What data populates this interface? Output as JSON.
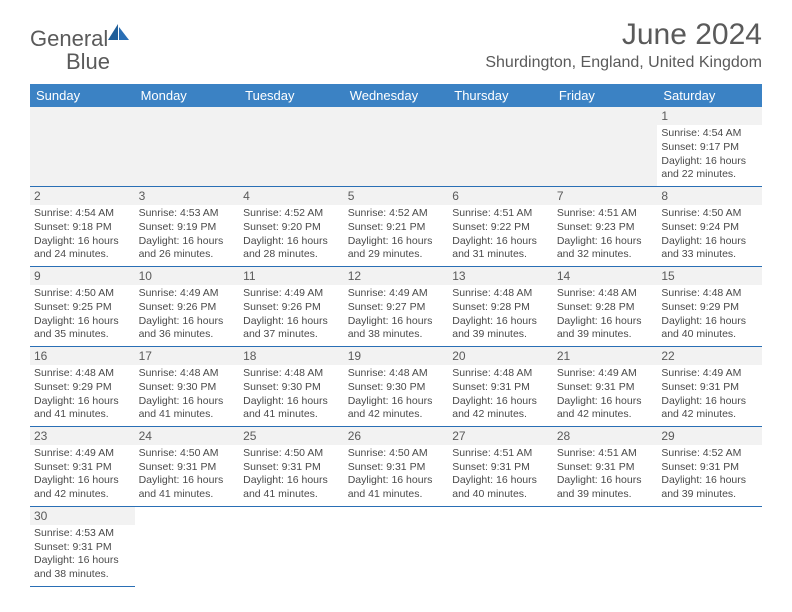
{
  "logo": {
    "text1": "General",
    "text2": "Blue"
  },
  "title": "June 2024",
  "location": "Shurdington, England, United Kingdom",
  "header_bg": "#3b82c4",
  "border_color": "#2a6fb5",
  "dow": [
    "Sunday",
    "Monday",
    "Tuesday",
    "Wednesday",
    "Thursday",
    "Friday",
    "Saturday"
  ],
  "weeks": [
    [
      null,
      null,
      null,
      null,
      null,
      null,
      {
        "n": "1",
        "sr": "4:54 AM",
        "ss": "9:17 PM",
        "dh": "16",
        "dm": "22"
      }
    ],
    [
      {
        "n": "2",
        "sr": "4:54 AM",
        "ss": "9:18 PM",
        "dh": "16",
        "dm": "24"
      },
      {
        "n": "3",
        "sr": "4:53 AM",
        "ss": "9:19 PM",
        "dh": "16",
        "dm": "26"
      },
      {
        "n": "4",
        "sr": "4:52 AM",
        "ss": "9:20 PM",
        "dh": "16",
        "dm": "28"
      },
      {
        "n": "5",
        "sr": "4:52 AM",
        "ss": "9:21 PM",
        "dh": "16",
        "dm": "29"
      },
      {
        "n": "6",
        "sr": "4:51 AM",
        "ss": "9:22 PM",
        "dh": "16",
        "dm": "31"
      },
      {
        "n": "7",
        "sr": "4:51 AM",
        "ss": "9:23 PM",
        "dh": "16",
        "dm": "32"
      },
      {
        "n": "8",
        "sr": "4:50 AM",
        "ss": "9:24 PM",
        "dh": "16",
        "dm": "33"
      }
    ],
    [
      {
        "n": "9",
        "sr": "4:50 AM",
        "ss": "9:25 PM",
        "dh": "16",
        "dm": "35"
      },
      {
        "n": "10",
        "sr": "4:49 AM",
        "ss": "9:26 PM",
        "dh": "16",
        "dm": "36"
      },
      {
        "n": "11",
        "sr": "4:49 AM",
        "ss": "9:26 PM",
        "dh": "16",
        "dm": "37"
      },
      {
        "n": "12",
        "sr": "4:49 AM",
        "ss": "9:27 PM",
        "dh": "16",
        "dm": "38"
      },
      {
        "n": "13",
        "sr": "4:48 AM",
        "ss": "9:28 PM",
        "dh": "16",
        "dm": "39"
      },
      {
        "n": "14",
        "sr": "4:48 AM",
        "ss": "9:28 PM",
        "dh": "16",
        "dm": "39"
      },
      {
        "n": "15",
        "sr": "4:48 AM",
        "ss": "9:29 PM",
        "dh": "16",
        "dm": "40"
      }
    ],
    [
      {
        "n": "16",
        "sr": "4:48 AM",
        "ss": "9:29 PM",
        "dh": "16",
        "dm": "41"
      },
      {
        "n": "17",
        "sr": "4:48 AM",
        "ss": "9:30 PM",
        "dh": "16",
        "dm": "41"
      },
      {
        "n": "18",
        "sr": "4:48 AM",
        "ss": "9:30 PM",
        "dh": "16",
        "dm": "41"
      },
      {
        "n": "19",
        "sr": "4:48 AM",
        "ss": "9:30 PM",
        "dh": "16",
        "dm": "42"
      },
      {
        "n": "20",
        "sr": "4:48 AM",
        "ss": "9:31 PM",
        "dh": "16",
        "dm": "42"
      },
      {
        "n": "21",
        "sr": "4:49 AM",
        "ss": "9:31 PM",
        "dh": "16",
        "dm": "42"
      },
      {
        "n": "22",
        "sr": "4:49 AM",
        "ss": "9:31 PM",
        "dh": "16",
        "dm": "42"
      }
    ],
    [
      {
        "n": "23",
        "sr": "4:49 AM",
        "ss": "9:31 PM",
        "dh": "16",
        "dm": "42"
      },
      {
        "n": "24",
        "sr": "4:50 AM",
        "ss": "9:31 PM",
        "dh": "16",
        "dm": "41"
      },
      {
        "n": "25",
        "sr": "4:50 AM",
        "ss": "9:31 PM",
        "dh": "16",
        "dm": "41"
      },
      {
        "n": "26",
        "sr": "4:50 AM",
        "ss": "9:31 PM",
        "dh": "16",
        "dm": "41"
      },
      {
        "n": "27",
        "sr": "4:51 AM",
        "ss": "9:31 PM",
        "dh": "16",
        "dm": "40"
      },
      {
        "n": "28",
        "sr": "4:51 AM",
        "ss": "9:31 PM",
        "dh": "16",
        "dm": "39"
      },
      {
        "n": "29",
        "sr": "4:52 AM",
        "ss": "9:31 PM",
        "dh": "16",
        "dm": "39"
      }
    ],
    [
      {
        "n": "30",
        "sr": "4:53 AM",
        "ss": "9:31 PM",
        "dh": "16",
        "dm": "38"
      },
      null,
      null,
      null,
      null,
      null,
      null
    ]
  ],
  "labels": {
    "sunrise": "Sunrise:",
    "sunset": "Sunset:",
    "daylight_prefix": "Daylight:",
    "hours_word": "hours",
    "and_word": "and",
    "minutes_word": "minutes."
  }
}
